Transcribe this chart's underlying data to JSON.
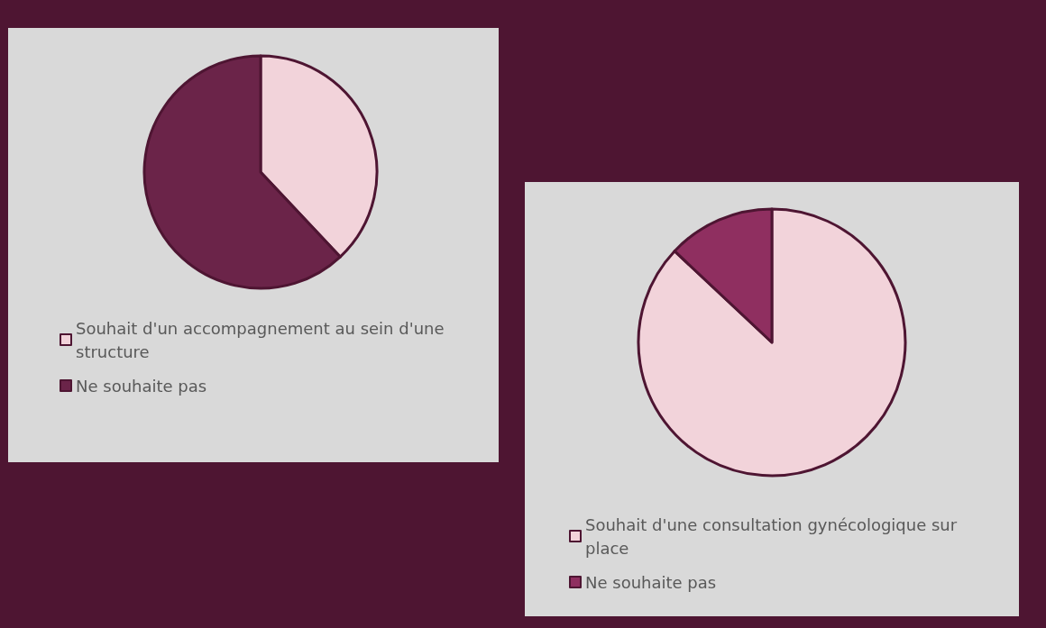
{
  "chart_data": [
    {
      "type": "pie",
      "categories": [
        "Souhait d'un accompagnement au sein d'une structure",
        "Ne souhaite pas"
      ],
      "values": [
        38,
        62
      ],
      "colors": [
        "#f2d3da",
        "#6b2449"
      ],
      "legend": "bottom"
    },
    {
      "type": "pie",
      "categories": [
        "Souhait d'une consultation gynécologique sur place",
        "Ne souhaite pas"
      ],
      "values": [
        87,
        13
      ],
      "colors": [
        "#f2d3da",
        "#8f2f60"
      ],
      "legend": "bottom"
    }
  ]
}
